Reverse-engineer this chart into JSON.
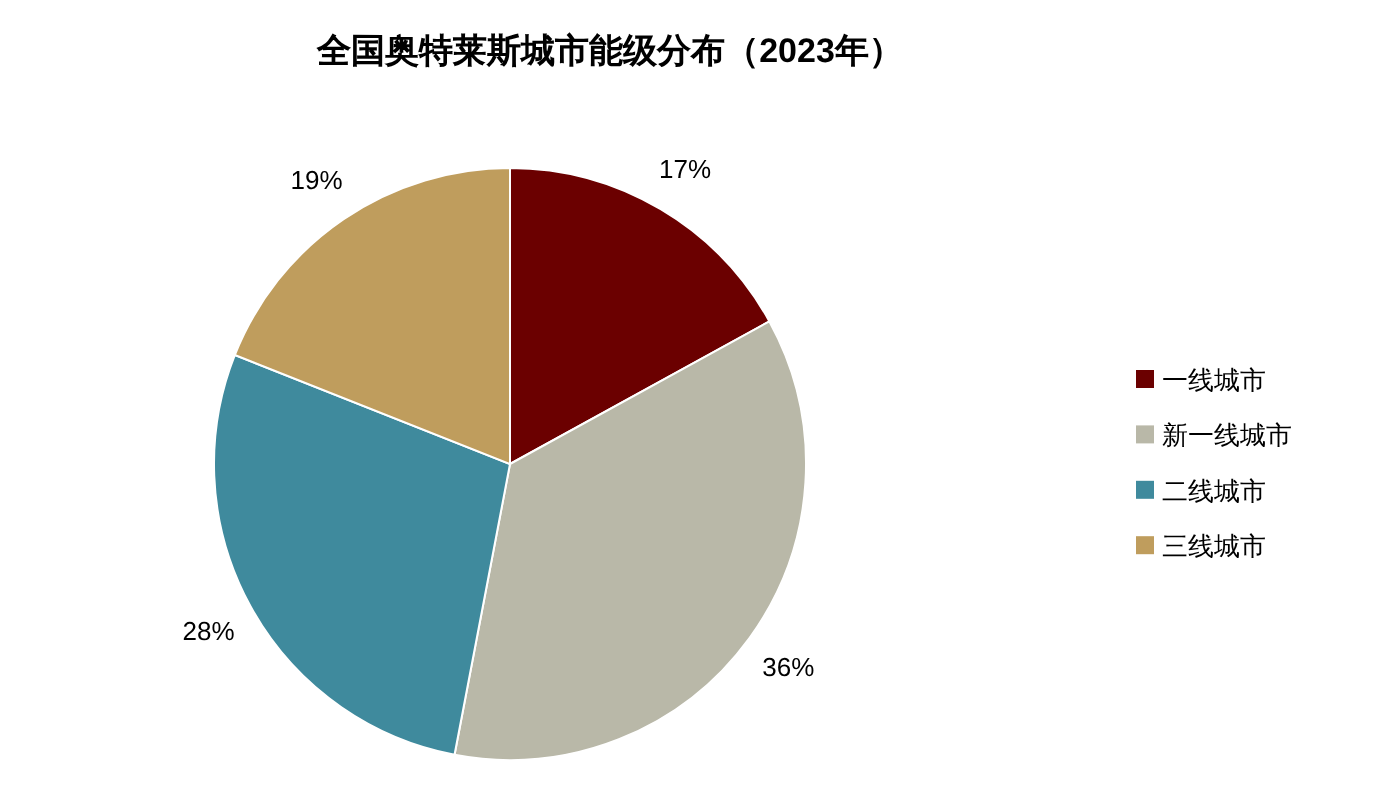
{
  "chart_data": {
    "type": "pie",
    "title": "全国奥特莱斯城市能级分布（2023年）",
    "categories": [
      "一线城市",
      "新一线城市",
      "二线城市",
      "三线城市"
    ],
    "values": [
      17,
      36,
      28,
      19
    ],
    "colors": [
      "#6b0000",
      "#b9b8a8",
      "#3f8a9d",
      "#bf9d5d"
    ],
    "value_labels": [
      "17%",
      "36%",
      "28%",
      "19%"
    ],
    "legend": "right"
  }
}
